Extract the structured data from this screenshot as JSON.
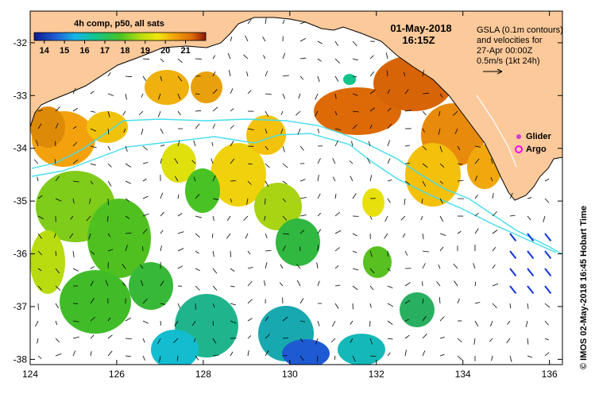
{
  "map": {
    "colorbar_title": "4h comp, p50, all sats",
    "colorbar_ticks": [
      "14",
      "15",
      "16",
      "17",
      "18",
      "19",
      "20",
      "21"
    ],
    "date": "01-May-2018",
    "time": "16:15Z",
    "legend_lines": [
      "GSLA (0.1m contours)",
      "and velocities for",
      "27-Apr 00:00Z",
      "0.5m/s (1kt 24h)"
    ],
    "glider_label": "Glider",
    "argo_label": "Argo",
    "side_label": "© IMOS 02-May-2018 16:45 Hobart Time",
    "x_ticks": [
      "124",
      "126",
      "128",
      "130",
      "132",
      "134",
      "136"
    ],
    "y_ticks": [
      "-32",
      "-33",
      "-34",
      "-35",
      "-36",
      "-37",
      "-38"
    ],
    "colors": {
      "land": "#fcc99a",
      "contour": "#44ddee",
      "glider": "#dd33dd",
      "argo": "#ff00ff",
      "vector_blue": "#1133dd"
    },
    "icons": [
      "glider-marker-icon",
      "argo-marker-icon",
      "scale-arrow-icon"
    ]
  },
  "chart_data": {
    "type": "heatmap",
    "xlim": [
      124,
      136.3
    ],
    "ylim": [
      -38.1,
      -31.4
    ],
    "colorbar_range": [
      13.5,
      22
    ],
    "x_ticks": [
      124,
      126,
      128,
      130,
      132,
      134,
      136
    ],
    "y_ticks": [
      -32,
      -33,
      -34,
      -35,
      -36,
      -37,
      -38
    ]
  }
}
